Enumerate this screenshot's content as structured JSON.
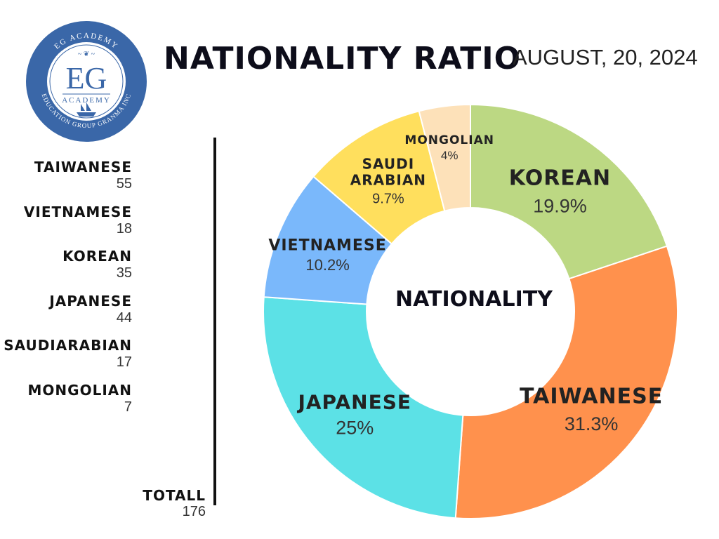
{
  "header": {
    "title": "NATIONALITY RATIO",
    "date": "AUGUST, 20, 2024"
  },
  "logo": {
    "top_text": "EG ACADEMY",
    "monogram": "EG",
    "subtitle": "ACADEMY",
    "bottom_text": "EDUCATION GROUP GRANMA INC"
  },
  "legend": {
    "items": [
      {
        "name": "TAIWANESE",
        "count": "55"
      },
      {
        "name": "VIETNAMESE",
        "count": "18"
      },
      {
        "name": "KOREAN",
        "count": "35"
      },
      {
        "name": "JAPANESE",
        "count": "44"
      },
      {
        "name": "SAUDIARABIAN",
        "count": "17"
      },
      {
        "name": "MONGOLIAN",
        "count": "7"
      }
    ],
    "total_label": "TOTALL",
    "total_value": "176"
  },
  "chart_data": {
    "type": "pie",
    "donut": true,
    "center_label": "NATIONALITY",
    "slices": [
      {
        "label": "KOREAN",
        "value": 19.9,
        "display": "19.9%",
        "color": "#bcd883"
      },
      {
        "label": "TAIWANESE",
        "value": 31.3,
        "display": "31.3%",
        "color": "#ff914d"
      },
      {
        "label": "JAPANESE",
        "value": 25,
        "display": "25%",
        "color": "#5ce1e6"
      },
      {
        "label": "VIETNAMESE",
        "value": 10.2,
        "display": "10.2%",
        "color": "#7ab8fb"
      },
      {
        "label": "SAUDI ARABIAN",
        "value": 9.7,
        "display": "9.7%",
        "color": "#ffdf5d"
      },
      {
        "label": "MONGOLIAN",
        "value": 4,
        "display": "4%",
        "color": "#fde1b9"
      }
    ]
  },
  "colors": {
    "logo_blue": "#3a67a8",
    "text_dark": "#0d0d1a"
  }
}
